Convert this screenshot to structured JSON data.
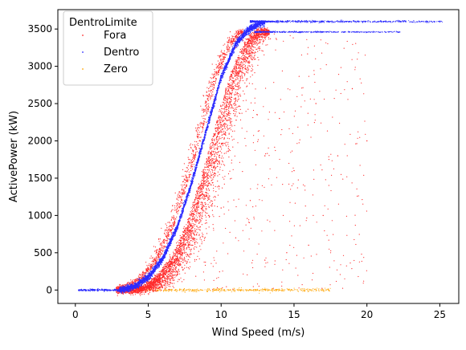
{
  "chart_data": {
    "type": "scatter",
    "xlabel": "Wind Speed (m/s)",
    "ylabel": "ActivePower (kW)",
    "xlim": [
      -1.2,
      26.3
    ],
    "ylim": [
      -180,
      3760
    ],
    "x_ticks": [
      0,
      5,
      10,
      15,
      20,
      25
    ],
    "y_ticks": [
      0,
      500,
      1000,
      1500,
      2000,
      2500,
      3000,
      3500
    ],
    "grid": false,
    "legend": {
      "title": "DentroLimite",
      "placement": "top-left",
      "entries": [
        {
          "label": "Fora",
          "color": "#ff2a2a"
        },
        {
          "label": "Dentro",
          "color": "#2b2bff"
        },
        {
          "label": "Zero",
          "color": "#ffa500"
        }
      ]
    },
    "series": [
      {
        "name": "Fora",
        "color": "#ff2a2a",
        "description_points": [
          [
            3.0,
            0
          ],
          [
            4.0,
            100
          ],
          [
            5.0,
            300
          ],
          [
            6.0,
            650
          ],
          [
            7.0,
            1100
          ],
          [
            8.0,
            1650
          ],
          [
            9.0,
            2250
          ],
          [
            10.0,
            2850
          ],
          [
            11.0,
            3250
          ],
          [
            12.0,
            3420
          ],
          [
            13.0,
            3450
          ],
          [
            5.5,
            400
          ],
          [
            6.5,
            800
          ],
          [
            7.5,
            1300
          ],
          [
            8.5,
            1900
          ],
          [
            9.5,
            2550
          ],
          [
            10.5,
            3050
          ],
          [
            11.5,
            3350
          ],
          [
            6.0,
            300
          ],
          [
            7.0,
            250
          ],
          [
            8.0,
            600
          ],
          [
            9.0,
            900
          ],
          [
            10.0,
            1100
          ],
          [
            11.0,
            700
          ],
          [
            12.0,
            1200
          ],
          [
            13.0,
            1800
          ],
          [
            14.0,
            2300
          ],
          [
            15.0,
            1600
          ],
          [
            16.0,
            600
          ],
          [
            17.0,
            1000
          ],
          [
            18.0,
            1800
          ],
          [
            19.0,
            2700
          ],
          [
            20.0,
            2000
          ],
          [
            13.0,
            400
          ],
          [
            14.5,
            500
          ],
          [
            16.5,
            2500
          ]
        ]
      },
      {
        "name": "Dentro",
        "color": "#2b2bff",
        "curve": [
          [
            0.2,
            0
          ],
          [
            3.0,
            0
          ],
          [
            4.0,
            40
          ],
          [
            5.0,
            170
          ],
          [
            6.0,
            420
          ],
          [
            7.0,
            850
          ],
          [
            8.0,
            1450
          ],
          [
            9.0,
            2150
          ],
          [
            10.0,
            2850
          ],
          [
            11.0,
            3300
          ],
          [
            11.8,
            3480
          ],
          [
            12.5,
            3560
          ],
          [
            13.0,
            3590
          ],
          [
            15.0,
            3600
          ],
          [
            20.0,
            3600
          ],
          [
            25.2,
            3600
          ]
        ],
        "upper_plateau": 3600,
        "lower_plateau": 3460
      },
      {
        "name": "Zero",
        "color": "#ffa500",
        "x_range": [
          3.0,
          17.5
        ],
        "value": 0
      }
    ]
  }
}
